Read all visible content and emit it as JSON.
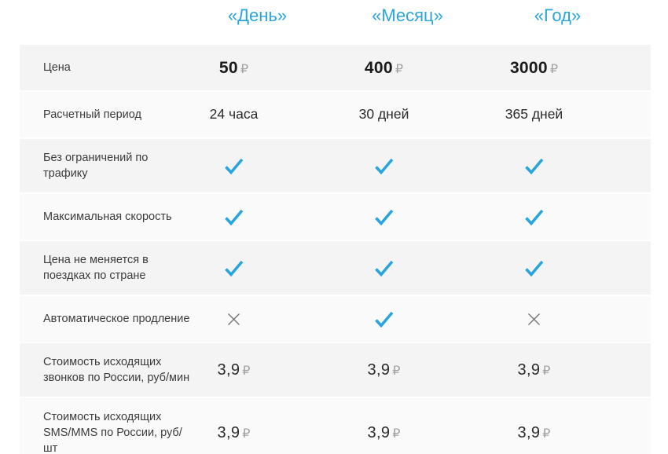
{
  "colors": {
    "accent": "#29a5de",
    "cross": "#757575",
    "row_dark": "#f4f4f4",
    "row_light": "#fafafa"
  },
  "currency_symbol": "₽",
  "columns": [
    "«День»",
    "«Месяц»",
    "«Год»"
  ],
  "rows": [
    {
      "label": "Цена",
      "type": "price",
      "values": [
        "50",
        "400",
        "3000"
      ]
    },
    {
      "label": "Расчетный период",
      "type": "text",
      "values": [
        "24 часа",
        "30 дней",
        "365 дней"
      ]
    },
    {
      "label": "Без ограничений по трафику",
      "type": "check",
      "values": [
        true,
        true,
        true
      ]
    },
    {
      "label": "Максимальная скорость",
      "type": "check",
      "values": [
        true,
        true,
        true
      ]
    },
    {
      "label": "Цена не меняется в поездках по стране",
      "type": "check",
      "values": [
        true,
        true,
        true
      ]
    },
    {
      "label": "Автоматическое продление",
      "type": "check",
      "values": [
        false,
        true,
        false
      ]
    },
    {
      "label": "Стоимость исходящих звонков по России, руб/мин",
      "type": "rate",
      "values": [
        "3,9",
        "3,9",
        "3,9"
      ]
    },
    {
      "label": "Стоимость исходящих SMS/MMS по России, руб/шт",
      "type": "rate",
      "values": [
        "3,9",
        "3,9",
        "3,9"
      ]
    }
  ]
}
